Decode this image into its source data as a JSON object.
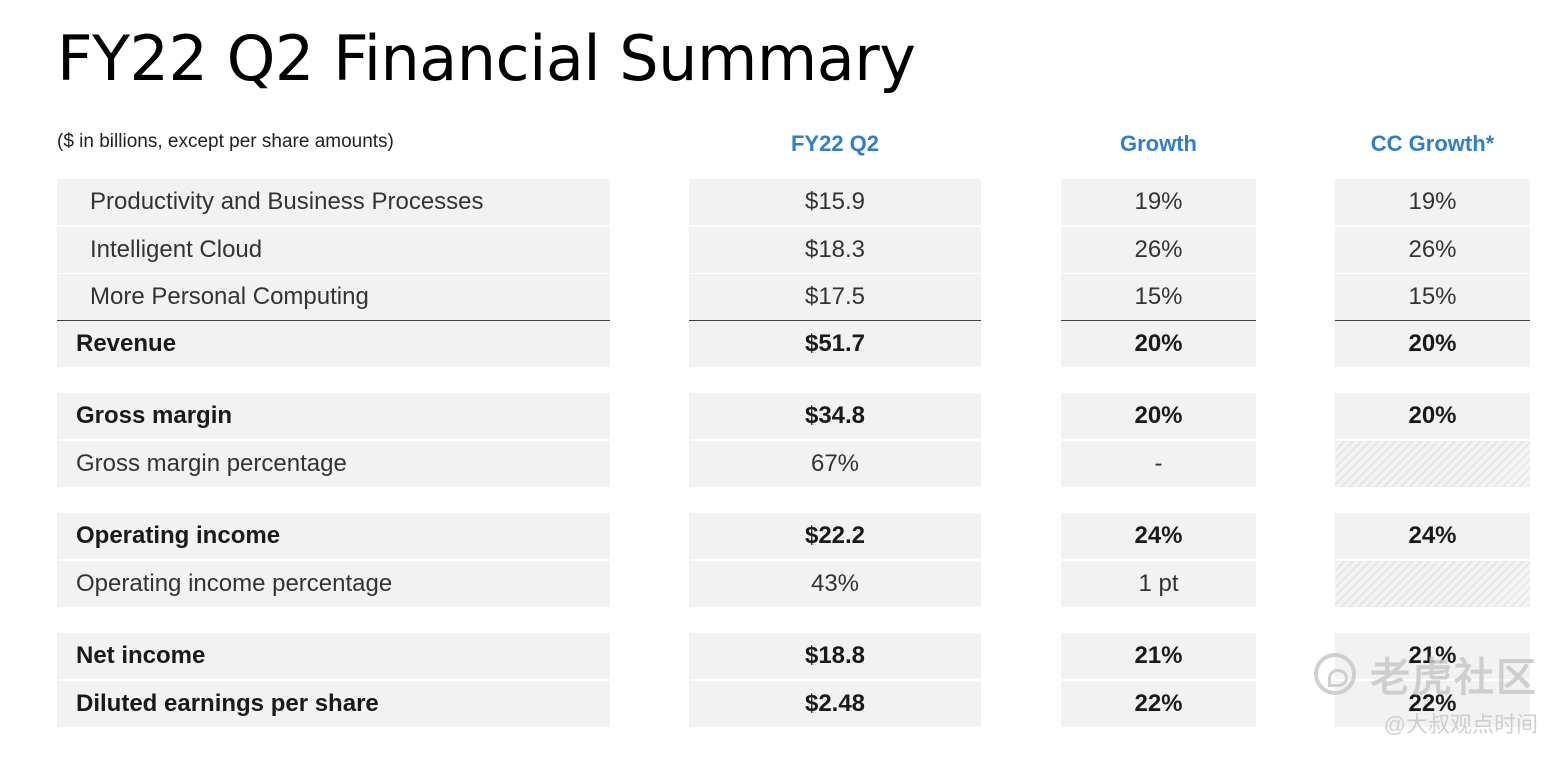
{
  "title": "FY22 Q2 Financial Summary",
  "subtitle": "($ in billions, except per share amounts)",
  "columns": {
    "q2": "FY22 Q2",
    "growth": "Growth",
    "cc_growth": "CC Growth*"
  },
  "segments": [
    {
      "label": "Productivity and Business Processes",
      "q2": "$15.9",
      "growth": "19%",
      "cc": "19%"
    },
    {
      "label": "Intelligent Cloud",
      "q2": "$18.3",
      "growth": "26%",
      "cc": "26%"
    },
    {
      "label": "More Personal Computing",
      "q2": "$17.5",
      "growth": "15%",
      "cc": "15%"
    }
  ],
  "revenue": {
    "label": "Revenue",
    "q2": "$51.7",
    "growth": "20%",
    "cc": "20%"
  },
  "gross_margin": {
    "label": "Gross margin",
    "q2": "$34.8",
    "growth": "20%",
    "cc": "20%"
  },
  "gross_margin_pct": {
    "label": "Gross margin percentage",
    "q2": "67%",
    "growth": "-",
    "cc": ""
  },
  "operating_income": {
    "label": "Operating income",
    "q2": "$22.2",
    "growth": "24%",
    "cc": "24%"
  },
  "operating_income_pct": {
    "label": "Operating income percentage",
    "q2": "43%",
    "growth": "1 pt",
    "cc": ""
  },
  "net_income": {
    "label": "Net income",
    "q2": "$18.8",
    "growth": "21%",
    "cc": "21%"
  },
  "eps": {
    "label": "Diluted earnings per share",
    "q2": "$2.48",
    "growth": "22%",
    "cc": "22%"
  },
  "watermark": {
    "logo_text": "老虎社区",
    "sub_text": "@大叔观点时间"
  }
}
